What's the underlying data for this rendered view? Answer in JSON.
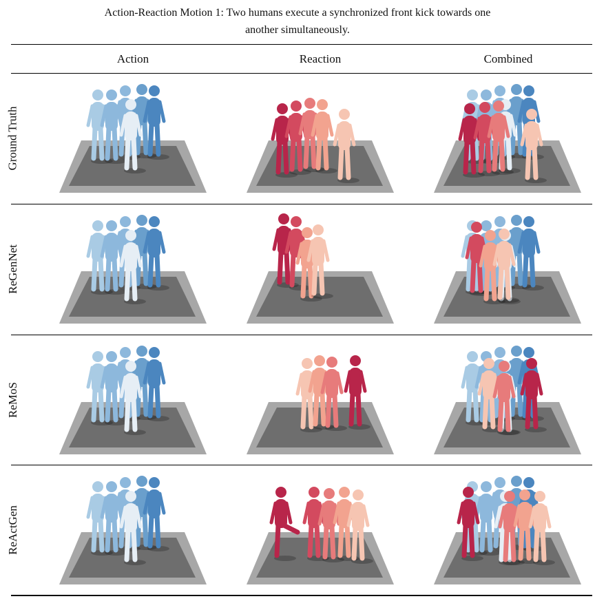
{
  "caption": {
    "line1": "Action-Reaction Motion 1:  Two humans execute a synchronized front kick towards one",
    "line2": "another simultaneously."
  },
  "columns": [
    "Action",
    "Reaction",
    "Combined"
  ],
  "rows": [
    {
      "label": "Ground Truth",
      "panels": [
        "action",
        "reaction",
        "combined"
      ]
    },
    {
      "label": "ReGenNet",
      "panels": [
        "action",
        "reaction",
        "combined"
      ]
    },
    {
      "label": "ReMoS",
      "panels": [
        "action",
        "reaction",
        "combined"
      ]
    },
    {
      "label": "ReActGen",
      "panels": [
        "action",
        "reaction",
        "combined"
      ]
    }
  ],
  "colors": {
    "action_figures": [
      "#a9cbe4",
      "#8db8dc",
      "#6a9fcc",
      "#4b86bf",
      "#e6eef5"
    ],
    "reaction_figures": [
      "#b8254a",
      "#d34a5f",
      "#e77b7b",
      "#f2a38f",
      "#f6c5b2"
    ],
    "floor_outer": "#a7a7a7",
    "floor_inner": "#6e6e6e"
  }
}
